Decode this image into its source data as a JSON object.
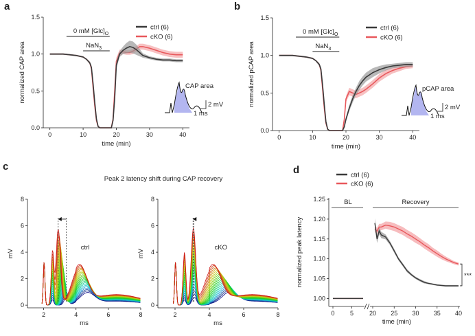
{
  "colors": {
    "ctrl": "#3a3a3a",
    "ctrl_band": "#9a9a9a",
    "cko": "#e8585c",
    "cko_band": "#f4a6a8",
    "shade": "#b3b6f0",
    "axis": "#222222"
  },
  "chart_data": [
    {
      "panel": "a",
      "type": "line",
      "xlabel": "time (min)",
      "ylabel": "normalized CAP area",
      "xlim": [
        -2,
        42
      ],
      "ylim": [
        0,
        1.5
      ],
      "xticks": [
        "0",
        "10",
        "20",
        "30",
        "40"
      ],
      "yticks": [
        "0.0",
        "0.5",
        "1.0",
        "1.5"
      ],
      "bar_glucose": {
        "label_main": "0 mM  [Glc]",
        "label_sub": "O",
        "from": 5,
        "to": 18
      },
      "bar_nan3": {
        "label_main": "NaN",
        "label_sub": "3",
        "from": 10,
        "to": 18
      },
      "legend": [
        "ctrl (6)",
        "cKO (6)"
      ],
      "inset": {
        "label": "CAP area",
        "scale_y": "2 mV",
        "scale_x": "1 ms"
      },
      "series": [
        {
          "name": "ctrl (6)",
          "x": [
            0,
            2,
            4,
            6,
            8,
            10,
            11,
            12,
            12.5,
            13,
            13.5,
            14,
            14.5,
            15,
            16,
            17,
            18,
            18.5,
            19,
            19.5,
            20,
            21,
            22,
            23,
            24,
            25,
            26,
            27,
            28,
            30,
            32,
            34,
            36,
            38,
            40
          ],
          "y": [
            1.0,
            1.0,
            1.0,
            0.99,
            0.98,
            0.96,
            0.93,
            0.88,
            0.82,
            0.6,
            0.35,
            0.12,
            0.02,
            0,
            0,
            0,
            0,
            0,
            0.1,
            0.4,
            0.85,
            1.0,
            1.05,
            1.08,
            1.1,
            1.09,
            1.06,
            1.02,
            0.98,
            0.95,
            0.93,
            0.92,
            0.92,
            0.91,
            0.91
          ],
          "err": [
            0.01,
            0.01,
            0.01,
            0.01,
            0.01,
            0.01,
            0.01,
            0.02,
            0.03,
            0.04,
            0.04,
            0.03,
            0.01,
            0,
            0,
            0,
            0,
            0,
            0.04,
            0.06,
            0.05,
            0.04,
            0.05,
            0.07,
            0.08,
            0.08,
            0.07,
            0.05,
            0.03,
            0.02,
            0.02,
            0.02,
            0.02,
            0.02,
            0.02
          ]
        },
        {
          "name": "cKO (6)",
          "x": [
            0,
            2,
            4,
            6,
            8,
            10,
            11,
            12,
            12.5,
            13,
            13.5,
            14,
            14.5,
            15,
            16,
            17,
            18,
            18.5,
            19,
            19.5,
            20,
            21,
            22,
            23,
            24,
            25,
            26,
            27,
            28,
            30,
            32,
            34,
            36,
            38,
            40
          ],
          "y": [
            1.0,
            1.0,
            1.0,
            0.99,
            0.98,
            0.96,
            0.93,
            0.88,
            0.8,
            0.55,
            0.3,
            0.1,
            0.02,
            0,
            0,
            0,
            0,
            0,
            0.12,
            0.5,
            0.9,
            1.02,
            1.03,
            1.02,
            1.02,
            1.04,
            1.07,
            1.1,
            1.1,
            1.08,
            1.05,
            1.02,
            1.0,
            0.99,
            0.99
          ],
          "err": [
            0.01,
            0.01,
            0.01,
            0.01,
            0.01,
            0.01,
            0.01,
            0.02,
            0.03,
            0.04,
            0.04,
            0.03,
            0.01,
            0,
            0,
            0,
            0,
            0,
            0.04,
            0.06,
            0.05,
            0.04,
            0.03,
            0.03,
            0.03,
            0.04,
            0.04,
            0.04,
            0.04,
            0.04,
            0.04,
            0.04,
            0.04,
            0.04,
            0.04
          ]
        }
      ]
    },
    {
      "panel": "b",
      "type": "line",
      "xlabel": "time (min)",
      "ylabel": "normalized pCAP area",
      "xlim": [
        -2,
        42
      ],
      "ylim": [
        0,
        1.5
      ],
      "xticks": [
        "0",
        "10",
        "20",
        "30",
        "40"
      ],
      "yticks": [
        "0.0",
        "0.5",
        "1.0",
        "1.5"
      ],
      "bar_glucose": {
        "label_main": "0 mM  [Glc]",
        "label_sub": "O",
        "from": 5,
        "to": 18
      },
      "bar_nan3": {
        "label_main": "NaN",
        "label_sub": "3",
        "from": 10,
        "to": 18
      },
      "legend": [
        "ctrl (6)",
        "cKO (6)"
      ],
      "inset": {
        "label": "pCAP area",
        "scale_y": "2 mV",
        "scale_x": "1 ms"
      },
      "series": [
        {
          "name": "ctrl (6)",
          "x": [
            0,
            2,
            4,
            6,
            8,
            10,
            11,
            12,
            12.5,
            13,
            13.5,
            14,
            14.5,
            15,
            16,
            17,
            18,
            18.5,
            19,
            19.5,
            20,
            21,
            22,
            23,
            24,
            25,
            26,
            28,
            30,
            32,
            34,
            36,
            38,
            40
          ],
          "y": [
            1.0,
            1.0,
            1.0,
            0.99,
            0.98,
            0.96,
            0.93,
            0.88,
            0.82,
            0.6,
            0.35,
            0.12,
            0.02,
            0,
            0,
            0,
            0,
            0,
            0,
            0.05,
            0.15,
            0.3,
            0.42,
            0.52,
            0.6,
            0.66,
            0.71,
            0.77,
            0.81,
            0.84,
            0.86,
            0.87,
            0.88,
            0.88
          ],
          "err": [
            0.01,
            0.01,
            0.01,
            0.01,
            0.01,
            0.01,
            0.01,
            0.02,
            0.03,
            0.04,
            0.04,
            0.03,
            0.01,
            0,
            0,
            0,
            0,
            0,
            0,
            0.02,
            0.03,
            0.04,
            0.05,
            0.05,
            0.06,
            0.06,
            0.06,
            0.06,
            0.05,
            0.04,
            0.03,
            0.03,
            0.03,
            0.03
          ]
        },
        {
          "name": "cKO (6)",
          "x": [
            0,
            2,
            4,
            6,
            8,
            10,
            11,
            12,
            12.5,
            13,
            13.5,
            14,
            14.5,
            15,
            16,
            17,
            18,
            18.5,
            19,
            19.5,
            20,
            21,
            22,
            23,
            24,
            25,
            26,
            28,
            30,
            32,
            34,
            36,
            38,
            40
          ],
          "y": [
            1.0,
            1.0,
            1.0,
            0.99,
            0.98,
            0.96,
            0.93,
            0.88,
            0.8,
            0.55,
            0.3,
            0.1,
            0.02,
            0,
            0,
            0,
            0,
            0,
            0,
            0.15,
            0.42,
            0.52,
            0.5,
            0.48,
            0.5,
            0.52,
            0.55,
            0.62,
            0.7,
            0.76,
            0.8,
            0.83,
            0.85,
            0.86
          ],
          "err": [
            0.01,
            0.01,
            0.01,
            0.01,
            0.01,
            0.01,
            0.01,
            0.02,
            0.03,
            0.04,
            0.04,
            0.03,
            0.01,
            0,
            0,
            0,
            0,
            0,
            0,
            0.03,
            0.04,
            0.05,
            0.05,
            0.05,
            0.05,
            0.05,
            0.05,
            0.05,
            0.05,
            0.05,
            0.04,
            0.04,
            0.03,
            0.03
          ]
        }
      ]
    },
    {
      "panel": "c",
      "type": "line",
      "title": "Peak 2 latency shift during CAP recovery",
      "xlabel": "ms",
      "ylabel": "mV",
      "xlim": [
        1,
        8
      ],
      "ylim": [
        -0.2,
        8
      ],
      "xticks": [
        "2",
        "4",
        "6",
        "8"
      ],
      "yticks": [
        "0",
        "2",
        "4",
        "6",
        "8"
      ],
      "subplots": [
        {
          "name": "ctrl",
          "marker_from": 3.4,
          "marker_to": 2.9
        },
        {
          "name": "cKO",
          "marker_from": 3.1,
          "marker_to": 3.05
        }
      ],
      "traces_note": "family of CAP traces during recovery, colour-coded from blue (early) to red (late)"
    },
    {
      "panel": "d",
      "type": "line",
      "xlabel": "time (min)",
      "ylabel": "normalized peak latency",
      "ylim": [
        0.98,
        1.25
      ],
      "yticks": [
        "1.00",
        "1.05",
        "1.10",
        "1.15",
        "1.20",
        "1.25"
      ],
      "xticks_bl": [
        "0",
        "5"
      ],
      "xticks_rec": [
        "20",
        "25",
        "30",
        "35",
        "40"
      ],
      "segment_labels": {
        "bl": "BL",
        "recovery": "Recovery"
      },
      "legend": [
        "ctrl (6)",
        "cKO (6)"
      ],
      "significance": "***",
      "series": [
        {
          "name": "ctrl (6)",
          "bl": {
            "x": [
              0,
              1,
              2,
              3,
              4,
              5,
              6,
              7,
              8
            ],
            "y": [
              1.0,
              1.0,
              1.0,
              1.0,
              1.0,
              1.0,
              1.0,
              1.0,
              1.0
            ]
          },
          "rec": {
            "x": [
              20.5,
              21,
              21.5,
              22,
              23,
              24,
              25,
              26,
              27,
              28,
              29,
              30,
              31,
              32,
              33,
              34,
              35,
              36,
              37,
              38,
              39,
              40
            ],
            "y": [
              1.19,
              1.15,
              1.17,
              1.16,
              1.155,
              1.14,
              1.12,
              1.1,
              1.085,
              1.07,
              1.06,
              1.052,
              1.046,
              1.041,
              1.038,
              1.036,
              1.034,
              1.033,
              1.032,
              1.032,
              1.032,
              1.032
            ],
            "err": [
              0.012,
              0.01,
              0.009,
              0.008,
              0.006,
              0.005,
              0.005,
              0.004,
              0.004,
              0.004,
              0.003,
              0.003,
              0.003,
              0.003,
              0.002,
              0.002,
              0.002,
              0.002,
              0.002,
              0.002,
              0.002,
              0.002
            ]
          }
        },
        {
          "name": "cKO (6)",
          "bl": {
            "x": [
              0,
              1,
              2,
              3,
              4,
              5,
              6,
              7,
              8
            ],
            "y": [
              1.0,
              1.0,
              1.0,
              1.0,
              1.0,
              1.0,
              1.0,
              1.0,
              1.0
            ]
          },
          "rec": {
            "x": [
              20.5,
              21,
              21.5,
              22,
              23,
              24,
              25,
              26,
              27,
              28,
              29,
              30,
              31,
              32,
              33,
              34,
              35,
              36,
              37,
              38,
              39,
              40
            ],
            "y": [
              1.175,
              1.17,
              1.18,
              1.18,
              1.185,
              1.183,
              1.18,
              1.175,
              1.17,
              1.163,
              1.157,
              1.15,
              1.143,
              1.135,
              1.128,
              1.12,
              1.113,
              1.106,
              1.1,
              1.095,
              1.09,
              1.087
            ],
            "err": [
              0.008,
              0.008,
              0.008,
              0.008,
              0.009,
              0.01,
              0.01,
              0.01,
              0.01,
              0.01,
              0.01,
              0.01,
              0.009,
              0.009,
              0.009,
              0.008,
              0.008,
              0.007,
              0.006,
              0.005,
              0.004,
              0.004
            ]
          }
        }
      ]
    }
  ]
}
